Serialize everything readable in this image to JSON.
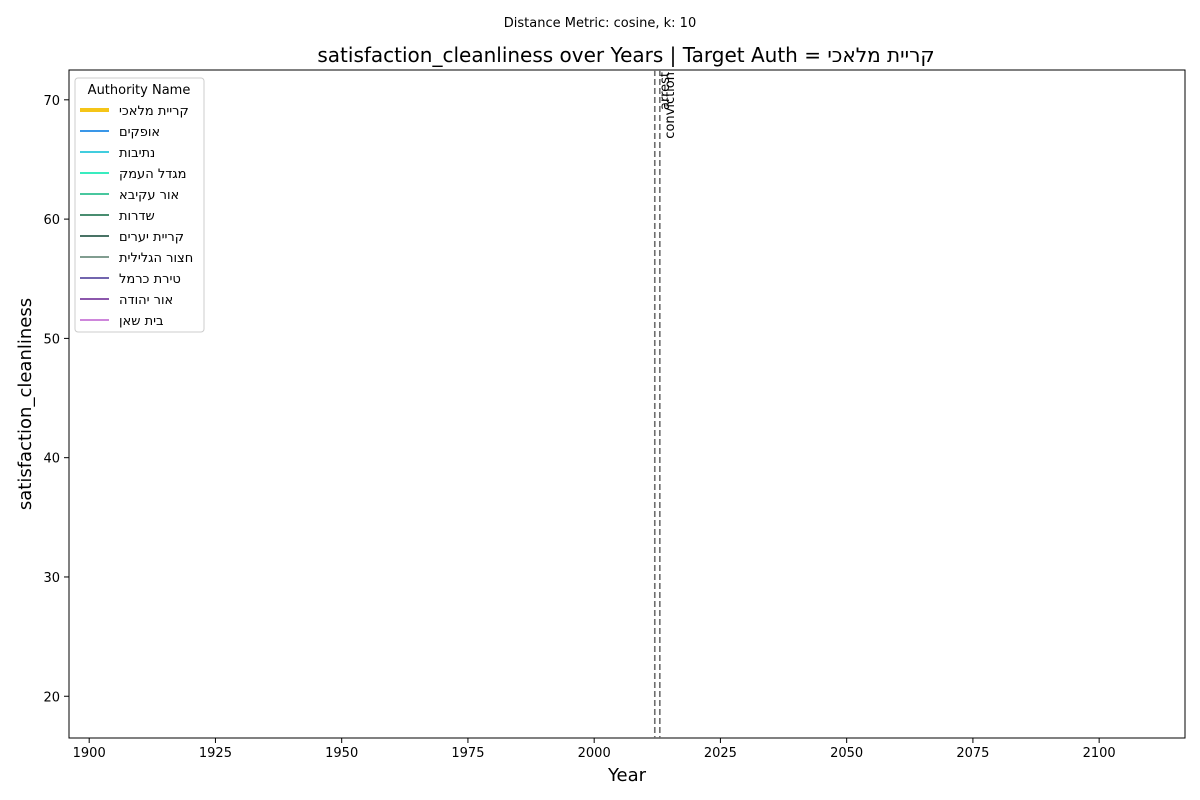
{
  "chart_data": {
    "type": "line",
    "suptitle": "Distance Metric: cosine, k: 10",
    "title": "satisfaction_cleanliness over Years | Target Auth = קריית מלאכי",
    "xlabel": "Year",
    "ylabel": "satisfaction_cleanliness",
    "xlim": [
      1896,
      2117
    ],
    "ylim": [
      16.5,
      72.5
    ],
    "xticks": [
      "1900",
      "1925",
      "1950",
      "1975",
      "2000",
      "2025",
      "2050",
      "2075",
      "2100"
    ],
    "yticks": [
      "20",
      "30",
      "40",
      "50",
      "60",
      "70"
    ],
    "grid": false,
    "legend": {
      "title": "Authority Name",
      "placement": "top-left",
      "entries": [
        {
          "name": "קריית מלאכי",
          "color": "#f5c518",
          "target": true
        },
        {
          "name": "אופקים",
          "color": "#1e88e5",
          "target": false
        },
        {
          "name": "נתיבות",
          "color": "#26c6da",
          "target": false
        },
        {
          "name": "מגדל העמק",
          "color": "#1de9b6",
          "target": false
        },
        {
          "name": "אור עקיבא",
          "color": "#2ebf91",
          "target": false
        },
        {
          "name": "שדרות",
          "color": "#2e7d5b",
          "target": false
        },
        {
          "name": "קריית יערים",
          "color": "#2f5f4f",
          "target": false
        },
        {
          "name": "חצור הגלילית",
          "color": "#6f8f80",
          "target": false
        },
        {
          "name": "טירת כרמל",
          "color": "#5e4fa2",
          "target": false
        },
        {
          "name": "אור יהודה",
          "color": "#7b3fa0",
          "target": false
        },
        {
          "name": "בית שאן",
          "color": "#c774d6",
          "target": false
        }
      ]
    },
    "vlines": [
      {
        "x": 2012,
        "label": "arrest",
        "color": "#6e6e6e"
      },
      {
        "x": 2013,
        "label": "conviction",
        "color": "#6e6e6e"
      }
    ],
    "series": []
  }
}
